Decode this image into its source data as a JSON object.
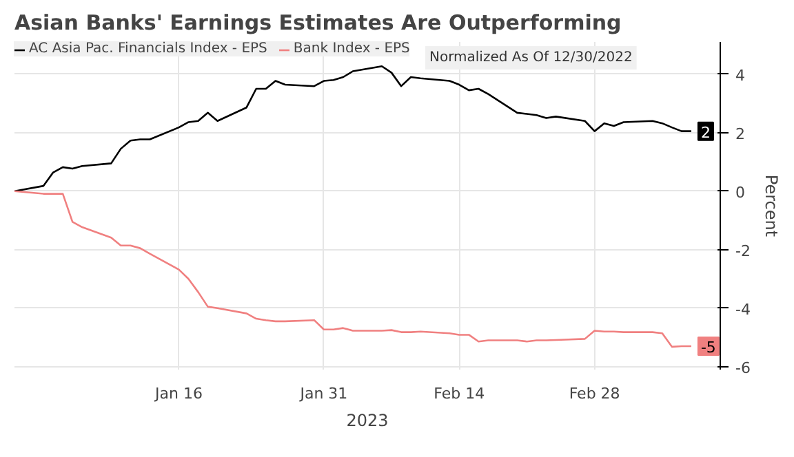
{
  "chart_data": {
    "type": "line",
    "title": "Asian Banks' Earnings Estimates Are Outperforming",
    "xlabel": "2023",
    "ylabel": "Percent",
    "annotations": [
      "Normalized As Of 12/30/2022",
      {
        "text": "2",
        "x": "2023-03-10",
        "y": 2.05
      },
      {
        "text": "-5",
        "x": "2023-03-10",
        "y": -5.3
      }
    ],
    "x": [
      "2022-12-30",
      "2023-01-02",
      "2023-01-03",
      "2023-01-04",
      "2023-01-05",
      "2023-01-06",
      "2023-01-09",
      "2023-01-10",
      "2023-01-11",
      "2023-01-12",
      "2023-01-13",
      "2023-01-16",
      "2023-01-17",
      "2023-01-18",
      "2023-01-19",
      "2023-01-20",
      "2023-01-23",
      "2023-01-24",
      "2023-01-25",
      "2023-01-26",
      "2023-01-27",
      "2023-01-30",
      "2023-01-31",
      "2023-02-01",
      "2023-02-02",
      "2023-02-03",
      "2023-02-06",
      "2023-02-07",
      "2023-02-08",
      "2023-02-09",
      "2023-02-10",
      "2023-02-13",
      "2023-02-14",
      "2023-02-15",
      "2023-02-16",
      "2023-02-17",
      "2023-02-20",
      "2023-02-21",
      "2023-02-22",
      "2023-02-23",
      "2023-02-24",
      "2023-02-27",
      "2023-02-28",
      "2023-03-01",
      "2023-03-02",
      "2023-03-03",
      "2023-03-06",
      "2023-03-07",
      "2023-03-08",
      "2023-03-09",
      "2023-03-10"
    ],
    "series": [
      {
        "name": "AC Asia Pac. Financials Index - EPS",
        "color": "#000000",
        "values": [
          0,
          0.18,
          0.64,
          0.82,
          0.77,
          0.86,
          0.95,
          1.45,
          1.73,
          1.77,
          1.77,
          2.18,
          2.36,
          2.4,
          2.68,
          2.4,
          2.86,
          3.5,
          3.5,
          3.77,
          3.64,
          3.59,
          3.77,
          3.8,
          3.9,
          4.1,
          4.27,
          4.05,
          3.59,
          3.9,
          3.86,
          3.77,
          3.64,
          3.45,
          3.5,
          3.32,
          2.68,
          2.64,
          2.6,
          2.5,
          2.55,
          2.4,
          2.05,
          2.32,
          2.23,
          2.36,
          2.4,
          2.32,
          2.18,
          2.05,
          2.05
        ]
      },
      {
        "name": "Bank Index - EPS",
        "color": "#f08080",
        "values": [
          0,
          -0.09,
          -0.09,
          -0.09,
          -1.05,
          -1.23,
          -1.59,
          -1.86,
          -1.86,
          -1.95,
          -2.14,
          -2.68,
          -3.0,
          -3.45,
          -3.95,
          -4.0,
          -4.18,
          -4.36,
          -4.41,
          -4.45,
          -4.45,
          -4.41,
          -4.73,
          -4.73,
          -4.68,
          -4.77,
          -4.77,
          -4.75,
          -4.82,
          -4.82,
          -4.8,
          -4.86,
          -4.91,
          -4.91,
          -5.14,
          -5.1,
          -5.1,
          -5.14,
          -5.1,
          -5.1,
          -5.09,
          -5.05,
          -4.77,
          -4.8,
          -4.8,
          -4.82,
          -4.82,
          -4.86,
          -5.32,
          -5.3,
          -5.3
        ]
      }
    ],
    "xlim": [
      "2022-12-30",
      "2023-03-13"
    ],
    "xticks": [
      {
        "value": "2023-01-16",
        "label": "Jan 16"
      },
      {
        "value": "2023-01-31",
        "label": "Jan 31"
      },
      {
        "value": "2023-02-14",
        "label": "Feb 14"
      },
      {
        "value": "2023-02-28",
        "label": "Feb 28"
      }
    ],
    "ylim": [
      -6.1,
      5.1
    ],
    "yticks": [
      -6,
      -4,
      -2,
      0,
      2,
      4
    ],
    "grid": true,
    "legend": "top left",
    "line_style": "solid"
  }
}
